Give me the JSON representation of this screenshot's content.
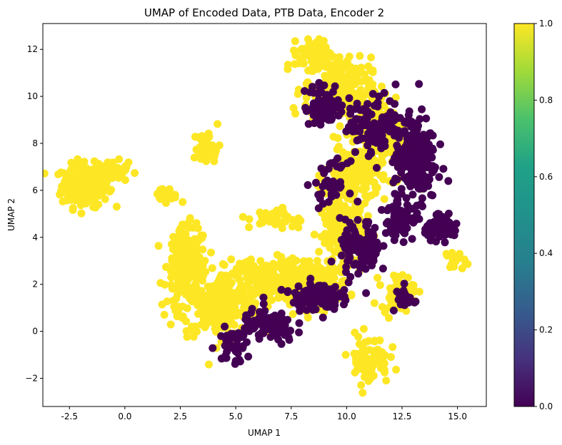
{
  "chart_data": {
    "type": "scatter",
    "title": "UMAP of Encoded Data, PTB Data, Encoder 2",
    "xlabel": "UMAP 1",
    "ylabel": "UMAP 2",
    "xlim": [
      -3.7,
      16.3
    ],
    "ylim": [
      -3.2,
      13.1
    ],
    "xticks": [
      "-2.5",
      "0.0",
      "2.5",
      "5.0",
      "7.5",
      "10.0",
      "12.5",
      "15.0"
    ],
    "xtick_values": [
      -2.5,
      0.0,
      2.5,
      5.0,
      7.5,
      10.0,
      12.5,
      15.0
    ],
    "yticks": [
      "−2",
      "0",
      "2",
      "4",
      "6",
      "8",
      "10",
      "12"
    ],
    "ytick_values": [
      -2,
      0,
      2,
      4,
      6,
      8,
      10,
      12
    ],
    "grid": false,
    "colorbar": {
      "colormap": "viridis",
      "range": [
        0.0,
        1.0
      ],
      "ticks": [
        "0.0",
        "0.2",
        "0.4",
        "0.6",
        "0.8",
        "1.0"
      ],
      "tick_values": [
        0.0,
        0.2,
        0.4,
        0.6,
        0.8,
        1.0
      ]
    },
    "color_values": {
      "class_0": "#440154",
      "class_1": "#fde725"
    },
    "clusters": [
      {
        "value": 1,
        "cx": -1.8,
        "cy": 6.2,
        "sx": 0.7,
        "sy": 0.6,
        "n": 220
      },
      {
        "value": 1,
        "cx": -0.6,
        "cy": 6.8,
        "sx": 0.5,
        "sy": 0.3,
        "n": 60
      },
      {
        "value": 1,
        "cx": 2.8,
        "cy": 2.8,
        "sx": 0.6,
        "sy": 1.1,
        "n": 200
      },
      {
        "value": 1,
        "cx": 4.3,
        "cy": 1.0,
        "sx": 1.2,
        "sy": 0.8,
        "n": 230
      },
      {
        "value": 1,
        "cx": 6.3,
        "cy": 2.2,
        "sx": 1.2,
        "sy": 0.6,
        "n": 200
      },
      {
        "value": 1,
        "cx": 8.6,
        "cy": 2.0,
        "sx": 1.0,
        "sy": 0.6,
        "n": 150
      },
      {
        "value": 1,
        "cx": 9.8,
        "cy": 4.3,
        "sx": 0.7,
        "sy": 1.0,
        "n": 170
      },
      {
        "value": 1,
        "cx": 10.3,
        "cy": 6.6,
        "sx": 0.8,
        "sy": 0.9,
        "n": 180
      },
      {
        "value": 1,
        "cx": 9.6,
        "cy": 10.3,
        "sx": 1.0,
        "sy": 0.9,
        "n": 200
      },
      {
        "value": 1,
        "cx": 8.6,
        "cy": 11.8,
        "sx": 0.5,
        "sy": 0.4,
        "n": 80
      },
      {
        "value": 1,
        "cx": 11.5,
        "cy": 8.5,
        "sx": 0.9,
        "sy": 1.5,
        "n": 160
      },
      {
        "value": 1,
        "cx": 11.0,
        "cy": -1.2,
        "sx": 0.6,
        "sy": 0.7,
        "n": 80
      },
      {
        "value": 1,
        "cx": 12.3,
        "cy": 1.7,
        "sx": 0.5,
        "sy": 0.5,
        "n": 60
      },
      {
        "value": 1,
        "cx": 3.7,
        "cy": 7.8,
        "sx": 0.4,
        "sy": 0.5,
        "n": 40
      },
      {
        "value": 1,
        "cx": 6.8,
        "cy": 4.8,
        "sx": 0.8,
        "sy": 0.3,
        "n": 40
      },
      {
        "value": 1,
        "cx": 14.9,
        "cy": 3.0,
        "sx": 0.3,
        "sy": 0.3,
        "n": 15
      },
      {
        "value": 1,
        "cx": 1.8,
        "cy": 5.8,
        "sx": 0.3,
        "sy": 0.2,
        "n": 25
      },
      {
        "value": 0,
        "cx": 13.1,
        "cy": 7.3,
        "sx": 0.6,
        "sy": 1.2,
        "n": 230
      },
      {
        "value": 0,
        "cx": 11.3,
        "cy": 8.8,
        "sx": 0.8,
        "sy": 0.8,
        "n": 120
      },
      {
        "value": 0,
        "cx": 9.0,
        "cy": 9.6,
        "sx": 0.6,
        "sy": 0.6,
        "n": 70
      },
      {
        "value": 0,
        "cx": 8.6,
        "cy": 1.5,
        "sx": 0.7,
        "sy": 0.4,
        "n": 120
      },
      {
        "value": 0,
        "cx": 10.6,
        "cy": 3.5,
        "sx": 0.6,
        "sy": 0.8,
        "n": 110
      },
      {
        "value": 0,
        "cx": 14.3,
        "cy": 4.4,
        "sx": 0.5,
        "sy": 0.3,
        "n": 80
      },
      {
        "value": 0,
        "cx": 6.5,
        "cy": 0.2,
        "sx": 0.8,
        "sy": 0.5,
        "n": 100
      },
      {
        "value": 0,
        "cx": 4.9,
        "cy": -0.6,
        "sx": 0.5,
        "sy": 0.5,
        "n": 40
      },
      {
        "value": 0,
        "cx": 12.3,
        "cy": 5.0,
        "sx": 0.5,
        "sy": 0.7,
        "n": 60
      },
      {
        "value": 0,
        "cx": 9.3,
        "cy": 6.3,
        "sx": 0.5,
        "sy": 0.6,
        "n": 40
      },
      {
        "value": 0,
        "cx": 12.6,
        "cy": 1.4,
        "sx": 0.3,
        "sy": 0.4,
        "n": 25
      }
    ]
  }
}
